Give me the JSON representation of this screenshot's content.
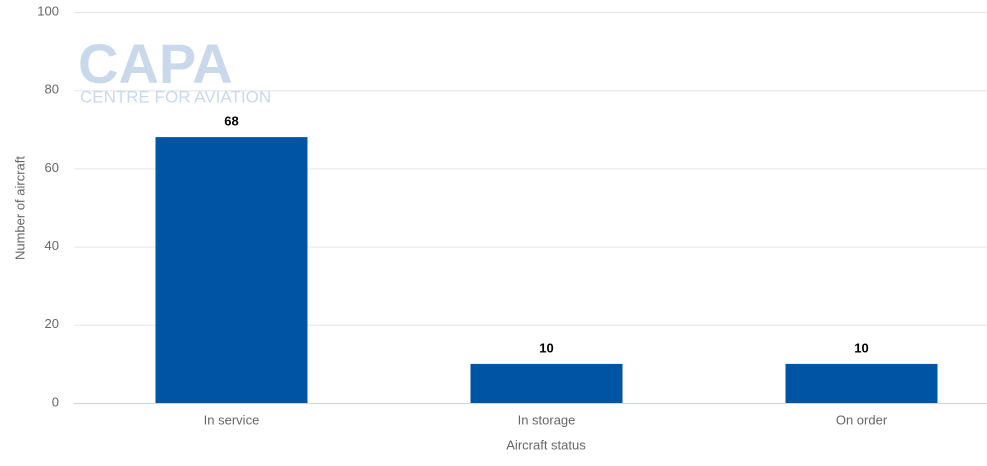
{
  "chart_data": {
    "type": "bar",
    "watermark": {
      "title": "CAPA",
      "subtitle": "CENTRE FOR AVIATION"
    },
    "x_label": "Aircraft status",
    "y_label": "Number of aircraft",
    "categories": [
      "In service",
      "In storage",
      "On order"
    ],
    "values": [
      68,
      10,
      10
    ],
    "color": "#0054a4",
    "ylim": [
      0,
      100
    ],
    "yticks": [
      0,
      20,
      40,
      60,
      80,
      100
    ],
    "grid": true,
    "show_value_labels": true
  }
}
